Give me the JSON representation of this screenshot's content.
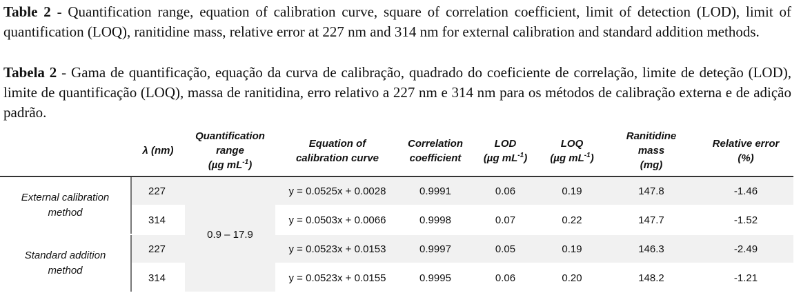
{
  "caption_en": {
    "label": "Table 2",
    "text": " - Quantification range, equation of calibration curve, square of correlation coefficient, limit of detection (LOD), limit of quantification (LOQ), ranitidine mass, relative error at 227 nm and 314 nm for external calibration and standard addition methods."
  },
  "caption_pt": {
    "label": "Tabela 2",
    "text": " - Gama de quantificação, equação da curva de calibração, quadrado do coeficiente de correlação, limite de deteção (LOD), limite de quantificação (LOQ), massa de ranitidina, erro relativo a 227 nm e 314 nm para os métodos de calibração externa e de adição padrão."
  },
  "table": {
    "headers": {
      "lambda": "λ (nm)",
      "range": [
        "Quantification",
        "range",
        "(µg mL",
        "-1",
        ")"
      ],
      "equation": [
        "Equation of",
        "calibration curve"
      ],
      "correlation": [
        "Correlation",
        "coefficient"
      ],
      "lod": [
        "LOD",
        "(µg mL",
        "-1",
        ")"
      ],
      "loq": [
        "LOQ",
        "(µg mL",
        "-1",
        ")"
      ],
      "mass": [
        "Ranitidine",
        "mass",
        "(mg)"
      ],
      "error": [
        "Relative error",
        "(%)"
      ]
    },
    "methods": [
      {
        "name": [
          "External calibration",
          "method"
        ]
      },
      {
        "name": [
          "Standard addition",
          "method"
        ]
      }
    ],
    "range_value": "0.9 – 17.9",
    "rows": [
      {
        "lambda": "227",
        "equation": "y = 0.0525x + 0.0028",
        "r": "0.9991",
        "lod": "0.06",
        "loq": "0.19",
        "mass": "147.8",
        "error": "-1.46"
      },
      {
        "lambda": "314",
        "equation": "y = 0.0503x + 0.0066",
        "r": "0.9998",
        "lod": "0.07",
        "loq": "0.22",
        "mass": "147.7",
        "error": "-1.52"
      },
      {
        "lambda": "227",
        "equation": "y = 0.0523x + 0.0153",
        "r": "0.9997",
        "lod": "0.05",
        "loq": "0.19",
        "mass": "146.3",
        "error": "-2.49"
      },
      {
        "lambda": "314",
        "equation": "y = 0.0523x + 0.0155",
        "r": "0.9995",
        "lod": "0.06",
        "loq": "0.20",
        "mass": "148.2",
        "error": "-1.21"
      }
    ]
  }
}
